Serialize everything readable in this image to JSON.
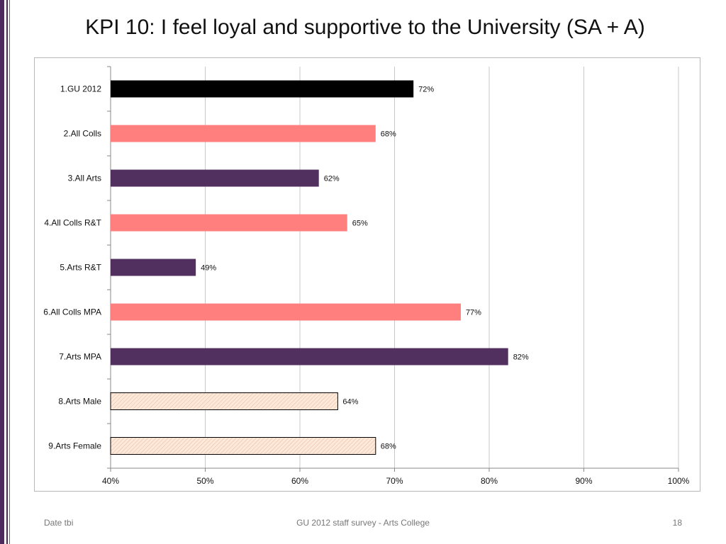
{
  "slide": {
    "title": "KPI 10: I feel loyal and supportive to the University (SA + A)",
    "footer_left": "Date tbi",
    "footer_center": "GU 2012 staff survey -  Arts College",
    "page_number": "18"
  },
  "colors": {
    "black": "#000000",
    "pink": "#ff7f7f",
    "purple": "#512f5f",
    "hatch_fill": "#fde9d9",
    "hatch_line": "#e8b89a",
    "accent_stripe": "#4e2a5e"
  },
  "chart_data": {
    "type": "bar",
    "orientation": "horizontal",
    "categories": [
      "1.GU 2012",
      "2.All Colls",
      "3.All Arts",
      "4.All Colls R&T",
      "5.Arts R&T",
      "6.All Colls MPA",
      "7.Arts MPA",
      "8.Arts Male",
      "9.Arts Female"
    ],
    "values": [
      72,
      68,
      62,
      65,
      49,
      77,
      82,
      64,
      68
    ],
    "data_labels": [
      "72%",
      "68%",
      "62%",
      "65%",
      "49%",
      "77%",
      "82%",
      "64%",
      "68%"
    ],
    "bar_styles": [
      "black",
      "pink",
      "purple",
      "pink",
      "purple",
      "pink",
      "purple",
      "hatch",
      "hatch"
    ],
    "xlim": [
      40,
      100
    ],
    "x_ticks": [
      40,
      50,
      60,
      70,
      80,
      90,
      100
    ],
    "x_tick_labels": [
      "40%",
      "50%",
      "60%",
      "70%",
      "80%",
      "90%",
      "100%"
    ],
    "grid": true,
    "legend": "none",
    "title": "",
    "xlabel": "",
    "ylabel": ""
  }
}
